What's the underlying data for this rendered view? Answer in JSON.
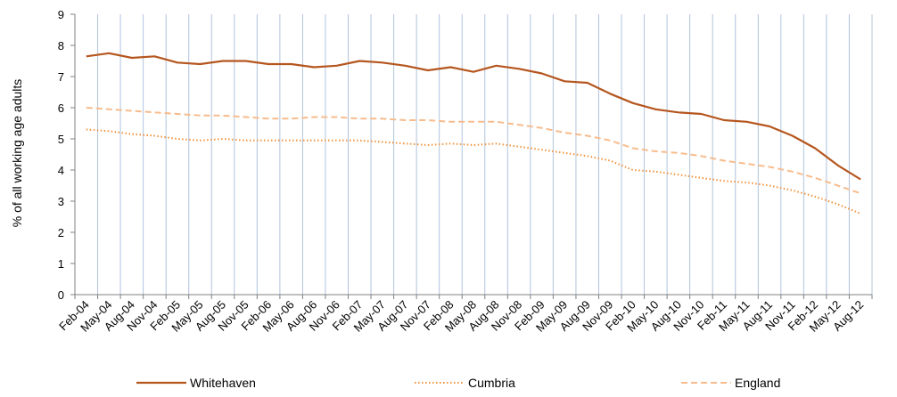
{
  "chart_data": {
    "type": "line",
    "title": "",
    "xlabel": "",
    "ylabel": "% of all working  age adults",
    "ylim": [
      0,
      9
    ],
    "yticks": [
      0,
      1,
      2,
      3,
      4,
      5,
      6,
      7,
      8,
      9
    ],
    "grid": "vertical",
    "legend_position": "bottom",
    "x": [
      "Feb-04",
      "May-04",
      "Aug-04",
      "Nov-04",
      "Feb-05",
      "May-05",
      "Aug-05",
      "Nov-05",
      "Feb-06",
      "May-06",
      "Aug-06",
      "Nov-06",
      "Feb-07",
      "May-07",
      "Aug-07",
      "Nov-07",
      "Feb-08",
      "May-08",
      "Aug-08",
      "Nov-08",
      "Feb-09",
      "May-09",
      "Aug-09",
      "Nov-09",
      "Feb-10",
      "May-10",
      "Aug-10",
      "Nov-10",
      "Feb-11",
      "May-11",
      "Aug-11",
      "Nov-11",
      "Feb-12",
      "May-12",
      "Aug-12"
    ],
    "series": [
      {
        "name": "Whitehaven",
        "color": "#b5561e",
        "style": "solid",
        "values": [
          7.65,
          7.75,
          7.6,
          7.65,
          7.45,
          7.4,
          7.5,
          7.5,
          7.4,
          7.4,
          7.3,
          7.35,
          7.5,
          7.45,
          7.35,
          7.2,
          7.3,
          7.15,
          7.35,
          7.25,
          7.1,
          6.85,
          6.8,
          6.45,
          6.15,
          5.95,
          5.85,
          5.8,
          5.6,
          5.55,
          5.4,
          5.1,
          4.7,
          4.15,
          3.7
        ]
      },
      {
        "name": "Cumbria",
        "color": "#f0923c",
        "style": "dotted",
        "values": [
          5.3,
          5.25,
          5.15,
          5.1,
          5.0,
          4.95,
          5.0,
          4.95,
          4.95,
          4.95,
          4.95,
          4.95,
          4.95,
          4.9,
          4.85,
          4.8,
          4.85,
          4.8,
          4.85,
          4.75,
          4.65,
          4.55,
          4.45,
          4.3,
          4.0,
          3.95,
          3.85,
          3.75,
          3.65,
          3.6,
          3.5,
          3.35,
          3.15,
          2.9,
          2.6
        ]
      },
      {
        "name": "England",
        "color": "#f7bc8d",
        "style": "dashed",
        "values": [
          6.0,
          5.95,
          5.9,
          5.85,
          5.8,
          5.75,
          5.75,
          5.7,
          5.65,
          5.65,
          5.7,
          5.7,
          5.65,
          5.65,
          5.6,
          5.6,
          5.55,
          5.55,
          5.55,
          5.45,
          5.35,
          5.2,
          5.1,
          4.95,
          4.7,
          4.6,
          4.55,
          4.45,
          4.3,
          4.2,
          4.1,
          3.95,
          3.75,
          3.5,
          3.25
        ]
      }
    ]
  }
}
